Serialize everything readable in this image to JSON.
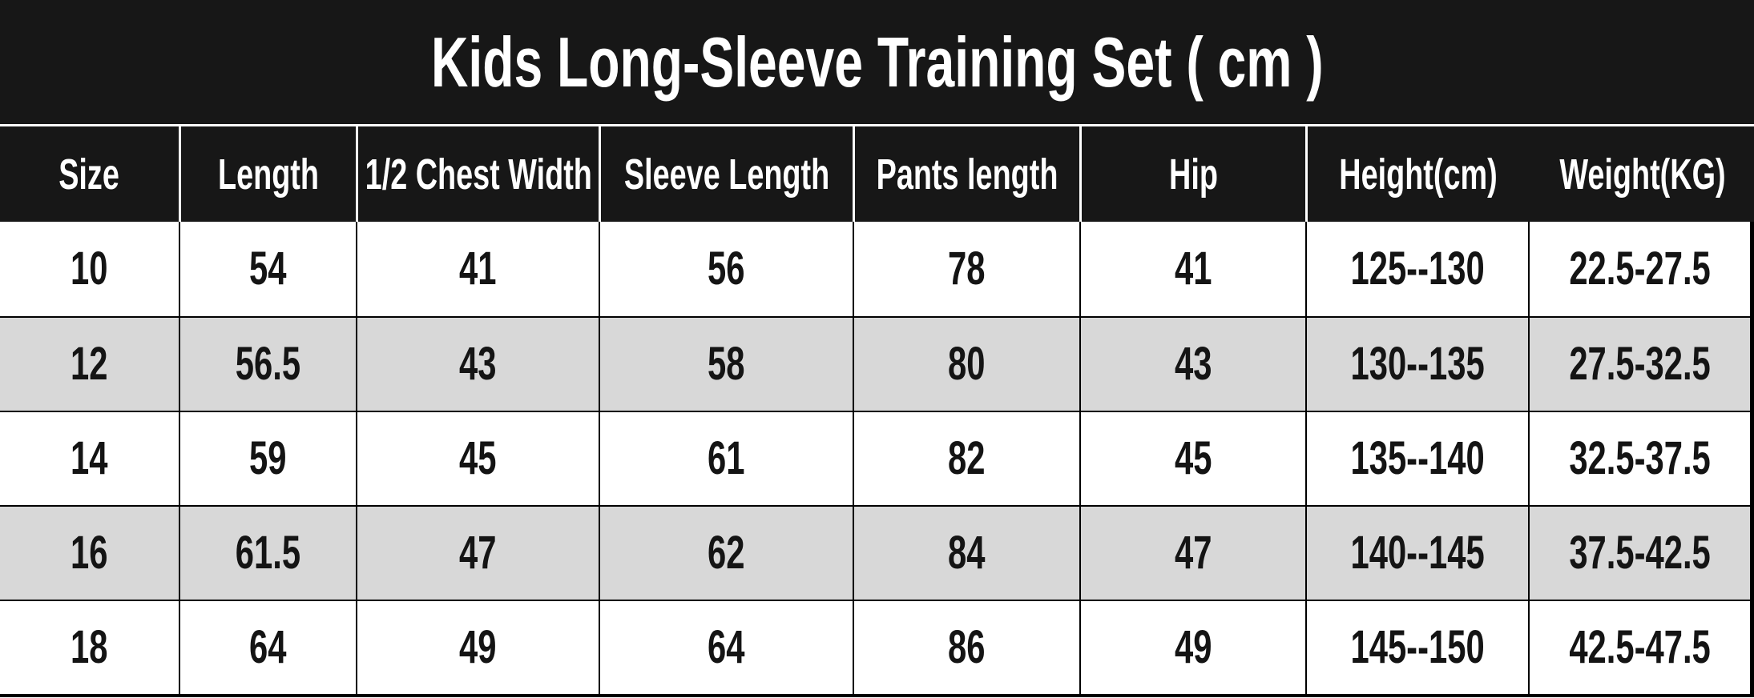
{
  "title": "Kids Long-Sleeve Training Set ( cm )",
  "table": {
    "columns": [
      "Size",
      "Length",
      "1/2 Chest Width",
      "Sleeve Length",
      "Pants length",
      "Hip",
      "Height(cm)",
      "Weight(KG)"
    ],
    "rows": [
      [
        "10",
        "54",
        "41",
        "56",
        "78",
        "41",
        "125--130",
        "22.5-27.5"
      ],
      [
        "12",
        "56.5",
        "43",
        "58",
        "80",
        "43",
        "130--135",
        "27.5-32.5"
      ],
      [
        "14",
        "59",
        "45",
        "61",
        "82",
        "45",
        "135--140",
        "32.5-37.5"
      ],
      [
        "16",
        "61.5",
        "47",
        "62",
        "84",
        "47",
        "140--145",
        "37.5-42.5"
      ],
      [
        "18",
        "64",
        "49",
        "64",
        "86",
        "49",
        "145--150",
        "42.5-47.5"
      ]
    ]
  },
  "colors": {
    "title_bg": "#171717",
    "header_bg": "#171717",
    "header_text": "#ffffff",
    "header_divider": "#ffffff",
    "row_bg": "#ffffff",
    "row_alt_bg": "#d8d8d8",
    "body_text": "#141414",
    "grid_line": "#000000"
  }
}
